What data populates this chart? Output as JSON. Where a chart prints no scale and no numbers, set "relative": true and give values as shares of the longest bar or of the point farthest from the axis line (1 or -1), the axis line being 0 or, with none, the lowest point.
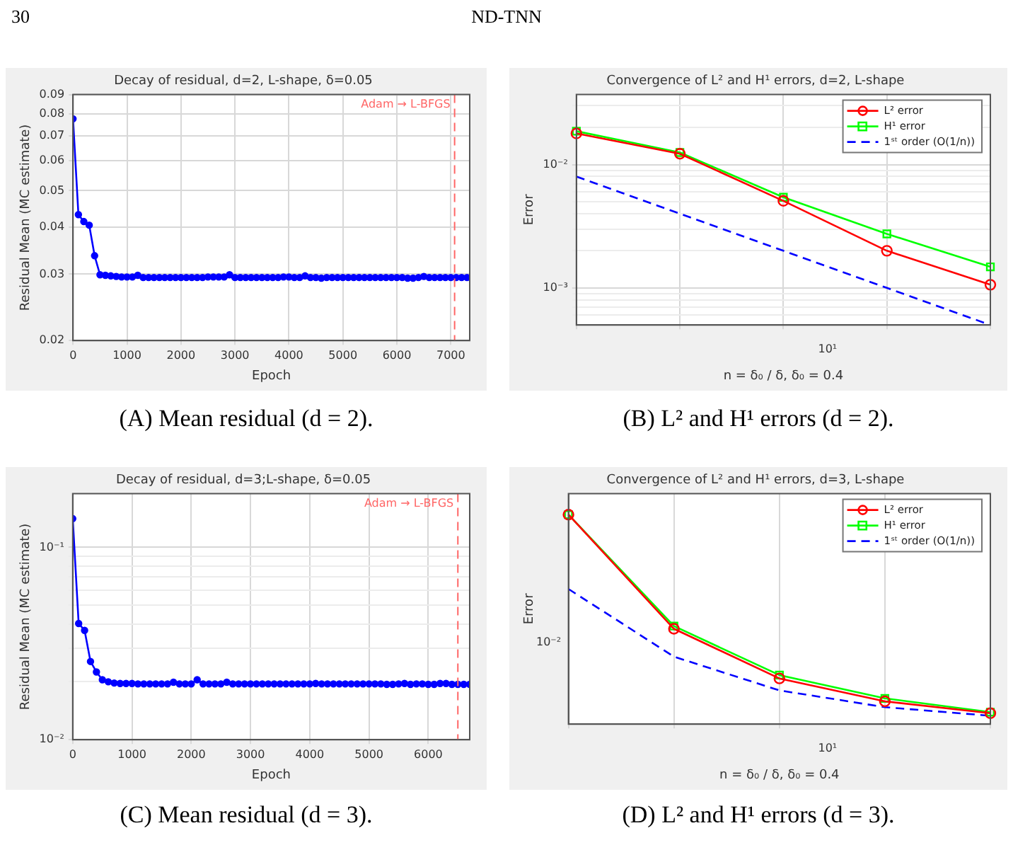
{
  "chart_data": [
    {
      "type": "line",
      "title": "Decay of residual, d=2, L-shape, δ=0.05",
      "xlabel": "Epoch",
      "ylabel": "Residual Mean (MC estimate)",
      "x": [
        0,
        100,
        200,
        300,
        400,
        500,
        600,
        700,
        800,
        900,
        1000,
        1100,
        1200,
        1300,
        1400,
        1500,
        1600,
        1700,
        1800,
        1900,
        2000,
        2100,
        2200,
        2300,
        2400,
        2500,
        2600,
        2700,
        2800,
        2900,
        3000,
        3100,
        3200,
        3300,
        3400,
        3500,
        3600,
        3700,
        3800,
        3900,
        4000,
        4100,
        4200,
        4300,
        4400,
        4500,
        4600,
        4700,
        4800,
        4900,
        5000,
        5100,
        5200,
        5300,
        5400,
        5500,
        5600,
        5700,
        5800,
        5900,
        6000,
        6100,
        6200,
        6300,
        6400,
        6500,
        6600,
        6700,
        6800,
        6900,
        7000,
        7100,
        7200,
        7300
      ],
      "series": [
        {
          "color": "#0000ff",
          "marker": "circle",
          "values": [
            0.0776,
            0.0432,
            0.0414,
            0.0405,
            0.0336,
            0.0299,
            0.0298,
            0.0297,
            0.0296,
            0.0295,
            0.0295,
            0.0295,
            0.0298,
            0.0294,
            0.0294,
            0.0294,
            0.0294,
            0.0294,
            0.0294,
            0.0294,
            0.0294,
            0.0294,
            0.0294,
            0.0294,
            0.0294,
            0.0295,
            0.0295,
            0.0295,
            0.0295,
            0.0299,
            0.0294,
            0.0294,
            0.0294,
            0.0294,
            0.0294,
            0.0294,
            0.0294,
            0.0294,
            0.0294,
            0.0295,
            0.0295,
            0.0294,
            0.0294,
            0.0297,
            0.0294,
            0.0294,
            0.0293,
            0.0294,
            0.0294,
            0.0294,
            0.0294,
            0.0294,
            0.0294,
            0.0294,
            0.0294,
            0.0294,
            0.0294,
            0.0294,
            0.0294,
            0.0294,
            0.0294,
            0.0294,
            0.0293,
            0.0293,
            0.0294,
            0.0296,
            0.0294,
            0.0294,
            0.0294,
            0.0294,
            0.0294,
            0.0294,
            0.0294,
            0.0294
          ]
        }
      ],
      "xlim": [
        0,
        7350
      ],
      "xticks": [
        0,
        1000,
        2000,
        3000,
        4000,
        5000,
        6000,
        7000
      ],
      "ylim": [
        0.02,
        0.09
      ],
      "yticks": [
        0.02,
        0.03,
        0.04,
        0.05,
        0.06,
        0.07,
        0.08,
        0.09
      ],
      "log": "y",
      "grid": true,
      "legend": false,
      "ref_lines": [
        {
          "axis": "x",
          "value": 7070,
          "label": "Adam → L-BFGS",
          "color": "#ff6666",
          "line_style": "dashed"
        }
      ],
      "annotations": [
        "30",
        "ND-TNN",
        "(A) Mean residual (d = 2)."
      ]
    },
    {
      "type": "line",
      "title": "Convergence of L² and H¹ errors, d=2, L-shape",
      "xlabel": "n = δ₀ / δ, δ₀ = 0.4",
      "ylabel": "Error",
      "categories": [
        null,
        null,
        null,
        null,
        null
      ],
      "series": [
        {
          "name": "L² error",
          "color": "#ff0000",
          "marker": "circle",
          "values": [
            0.0179,
            0.01225,
            0.00508,
            0.002,
            0.00106
          ]
        },
        {
          "name": "H¹ error",
          "color": "#00ff00",
          "marker": "square",
          "values": [
            0.01866,
            0.01253,
            0.00543,
            0.00274,
            0.00148
          ]
        },
        {
          "name": "1ˢᵗ order (O(1/n))",
          "color": "#0000ff",
          "marker": "none",
          "line_style": "dashed",
          "values": [
            0.008,
            0.004,
            0.002,
            0.001,
            0.0005
          ]
        }
      ],
      "ylim": [
        0.0005,
        0.037
      ],
      "yticks": [
        {
          "value": 0.0006,
          "label": null
        },
        {
          "value": 0.0007,
          "label": null
        },
        {
          "value": 0.0008,
          "label": null
        },
        {
          "value": 0.0009,
          "label": null
        },
        {
          "value": 0.001,
          "label": "10⁻³"
        },
        {
          "value": 0.002,
          "label": null
        },
        {
          "value": 0.003,
          "label": null
        },
        {
          "value": 0.004,
          "label": null
        },
        {
          "value": 0.005,
          "label": null
        },
        {
          "value": 0.006,
          "label": null
        },
        {
          "value": 0.007,
          "label": null
        },
        {
          "value": 0.008,
          "label": null
        },
        {
          "value": 0.009,
          "label": null
        },
        {
          "value": 0.01,
          "label": "10⁻²"
        },
        {
          "value": 0.02,
          "label": null
        },
        {
          "value": 0.03,
          "label": null
        }
      ],
      "log": "y",
      "grid": true,
      "legend": "top right",
      "annotations": [
        "10¹",
        "(B) L² and H¹ errors (d = 2)."
      ]
    },
    {
      "type": "line",
      "title": "Decay of residual, d=3;L-shape, δ=0.05",
      "xlabel": "Epoch",
      "ylabel": "Residual Mean (MC estimate)",
      "x": [
        0,
        100,
        200,
        300,
        400,
        500,
        600,
        700,
        800,
        900,
        1000,
        1100,
        1200,
        1300,
        1400,
        1500,
        1600,
        1700,
        1800,
        1900,
        2000,
        2100,
        2200,
        2300,
        2400,
        2500,
        2600,
        2700,
        2800,
        2900,
        3000,
        3100,
        3200,
        3300,
        3400,
        3500,
        3600,
        3700,
        3800,
        3900,
        4000,
        4100,
        4200,
        4300,
        4400,
        4500,
        4600,
        4700,
        4800,
        4900,
        5000,
        5100,
        5200,
        5300,
        5400,
        5500,
        5600,
        5700,
        5800,
        5900,
        6000,
        6100,
        6200,
        6300,
        6400,
        6500,
        6600,
        6700
      ],
      "series": [
        {
          "color": "#0000ff",
          "marker": "circle",
          "values": [
            0.141,
            0.0402,
            0.037,
            0.0255,
            0.0225,
            0.0205,
            0.02,
            0.0197,
            0.0196,
            0.0196,
            0.0196,
            0.0195,
            0.0195,
            0.0195,
            0.0195,
            0.0195,
            0.0195,
            0.0199,
            0.0195,
            0.0195,
            0.0195,
            0.0205,
            0.0195,
            0.0195,
            0.0195,
            0.0195,
            0.0199,
            0.0195,
            0.0195,
            0.0195,
            0.0195,
            0.0195,
            0.0195,
            0.0195,
            0.0195,
            0.0195,
            0.0195,
            0.0195,
            0.0195,
            0.0195,
            0.0195,
            0.0196,
            0.0195,
            0.0195,
            0.0195,
            0.0195,
            0.0195,
            0.0195,
            0.0195,
            0.0195,
            0.0195,
            0.0195,
            0.0195,
            0.0194,
            0.0194,
            0.0195,
            0.0196,
            0.0194,
            0.0195,
            0.0195,
            0.0194,
            0.0194,
            0.0196,
            0.0196,
            0.0194,
            0.0194,
            0.0194,
            0.0194
          ]
        }
      ],
      "xlim": [
        0,
        6700
      ],
      "xticks": [
        0,
        1000,
        2000,
        3000,
        4000,
        5000,
        6000
      ],
      "ylim": [
        0.01,
        0.19
      ],
      "yticks": [
        {
          "value": 0.01,
          "label": "10⁻²"
        },
        {
          "value": 0.02,
          "label": null
        },
        {
          "value": 0.03,
          "label": null
        },
        {
          "value": 0.04,
          "label": null
        },
        {
          "value": 0.05,
          "label": null
        },
        {
          "value": 0.06,
          "label": null
        },
        {
          "value": 0.07,
          "label": null
        },
        {
          "value": 0.08,
          "label": null
        },
        {
          "value": 0.09,
          "label": null
        },
        {
          "value": 0.1,
          "label": "10⁻¹"
        }
      ],
      "log": "y",
      "grid": true,
      "legend": false,
      "ref_lines": [
        {
          "axis": "x",
          "value": 6500,
          "label": "Adam → L-BFGS",
          "color": "#ff6666",
          "line_style": "dashed"
        }
      ],
      "annotations": [
        "(C) Mean residual (d = 3)."
      ]
    },
    {
      "type": "line",
      "title": "Convergence of L² and H¹ errors, d=3, L-shape",
      "xlabel": "n = δ₀ / δ, δ₀ = 0.4",
      "ylabel": "Error",
      "categories": [
        null,
        null,
        null,
        null,
        null
      ],
      "series": [
        {
          "name": "L² error",
          "color": "#ff0000",
          "marker": "circle",
          "values": [
            1,
            0.455,
            0.218,
            0.109,
            0.052
          ]
        },
        {
          "name": "H¹ error",
          "color": "#00ff00",
          "marker": "square",
          "values": [
            1,
            0.468,
            0.234,
            0.123,
            0.057
          ]
        },
        {
          "name": "1ˢᵗ order (O(1/n))",
          "color": "#0000ff",
          "marker": "none",
          "line_style": "dashed",
          "values": [
            0.645,
            0.322,
            0.161,
            0.081,
            0.04
          ]
        }
      ],
      "relative": true,
      "grid": "x",
      "legend": "top right",
      "annotations": [
        "10¹",
        "10⁻²",
        "(D) L² and H¹ errors (d = 3)."
      ]
    }
  ]
}
